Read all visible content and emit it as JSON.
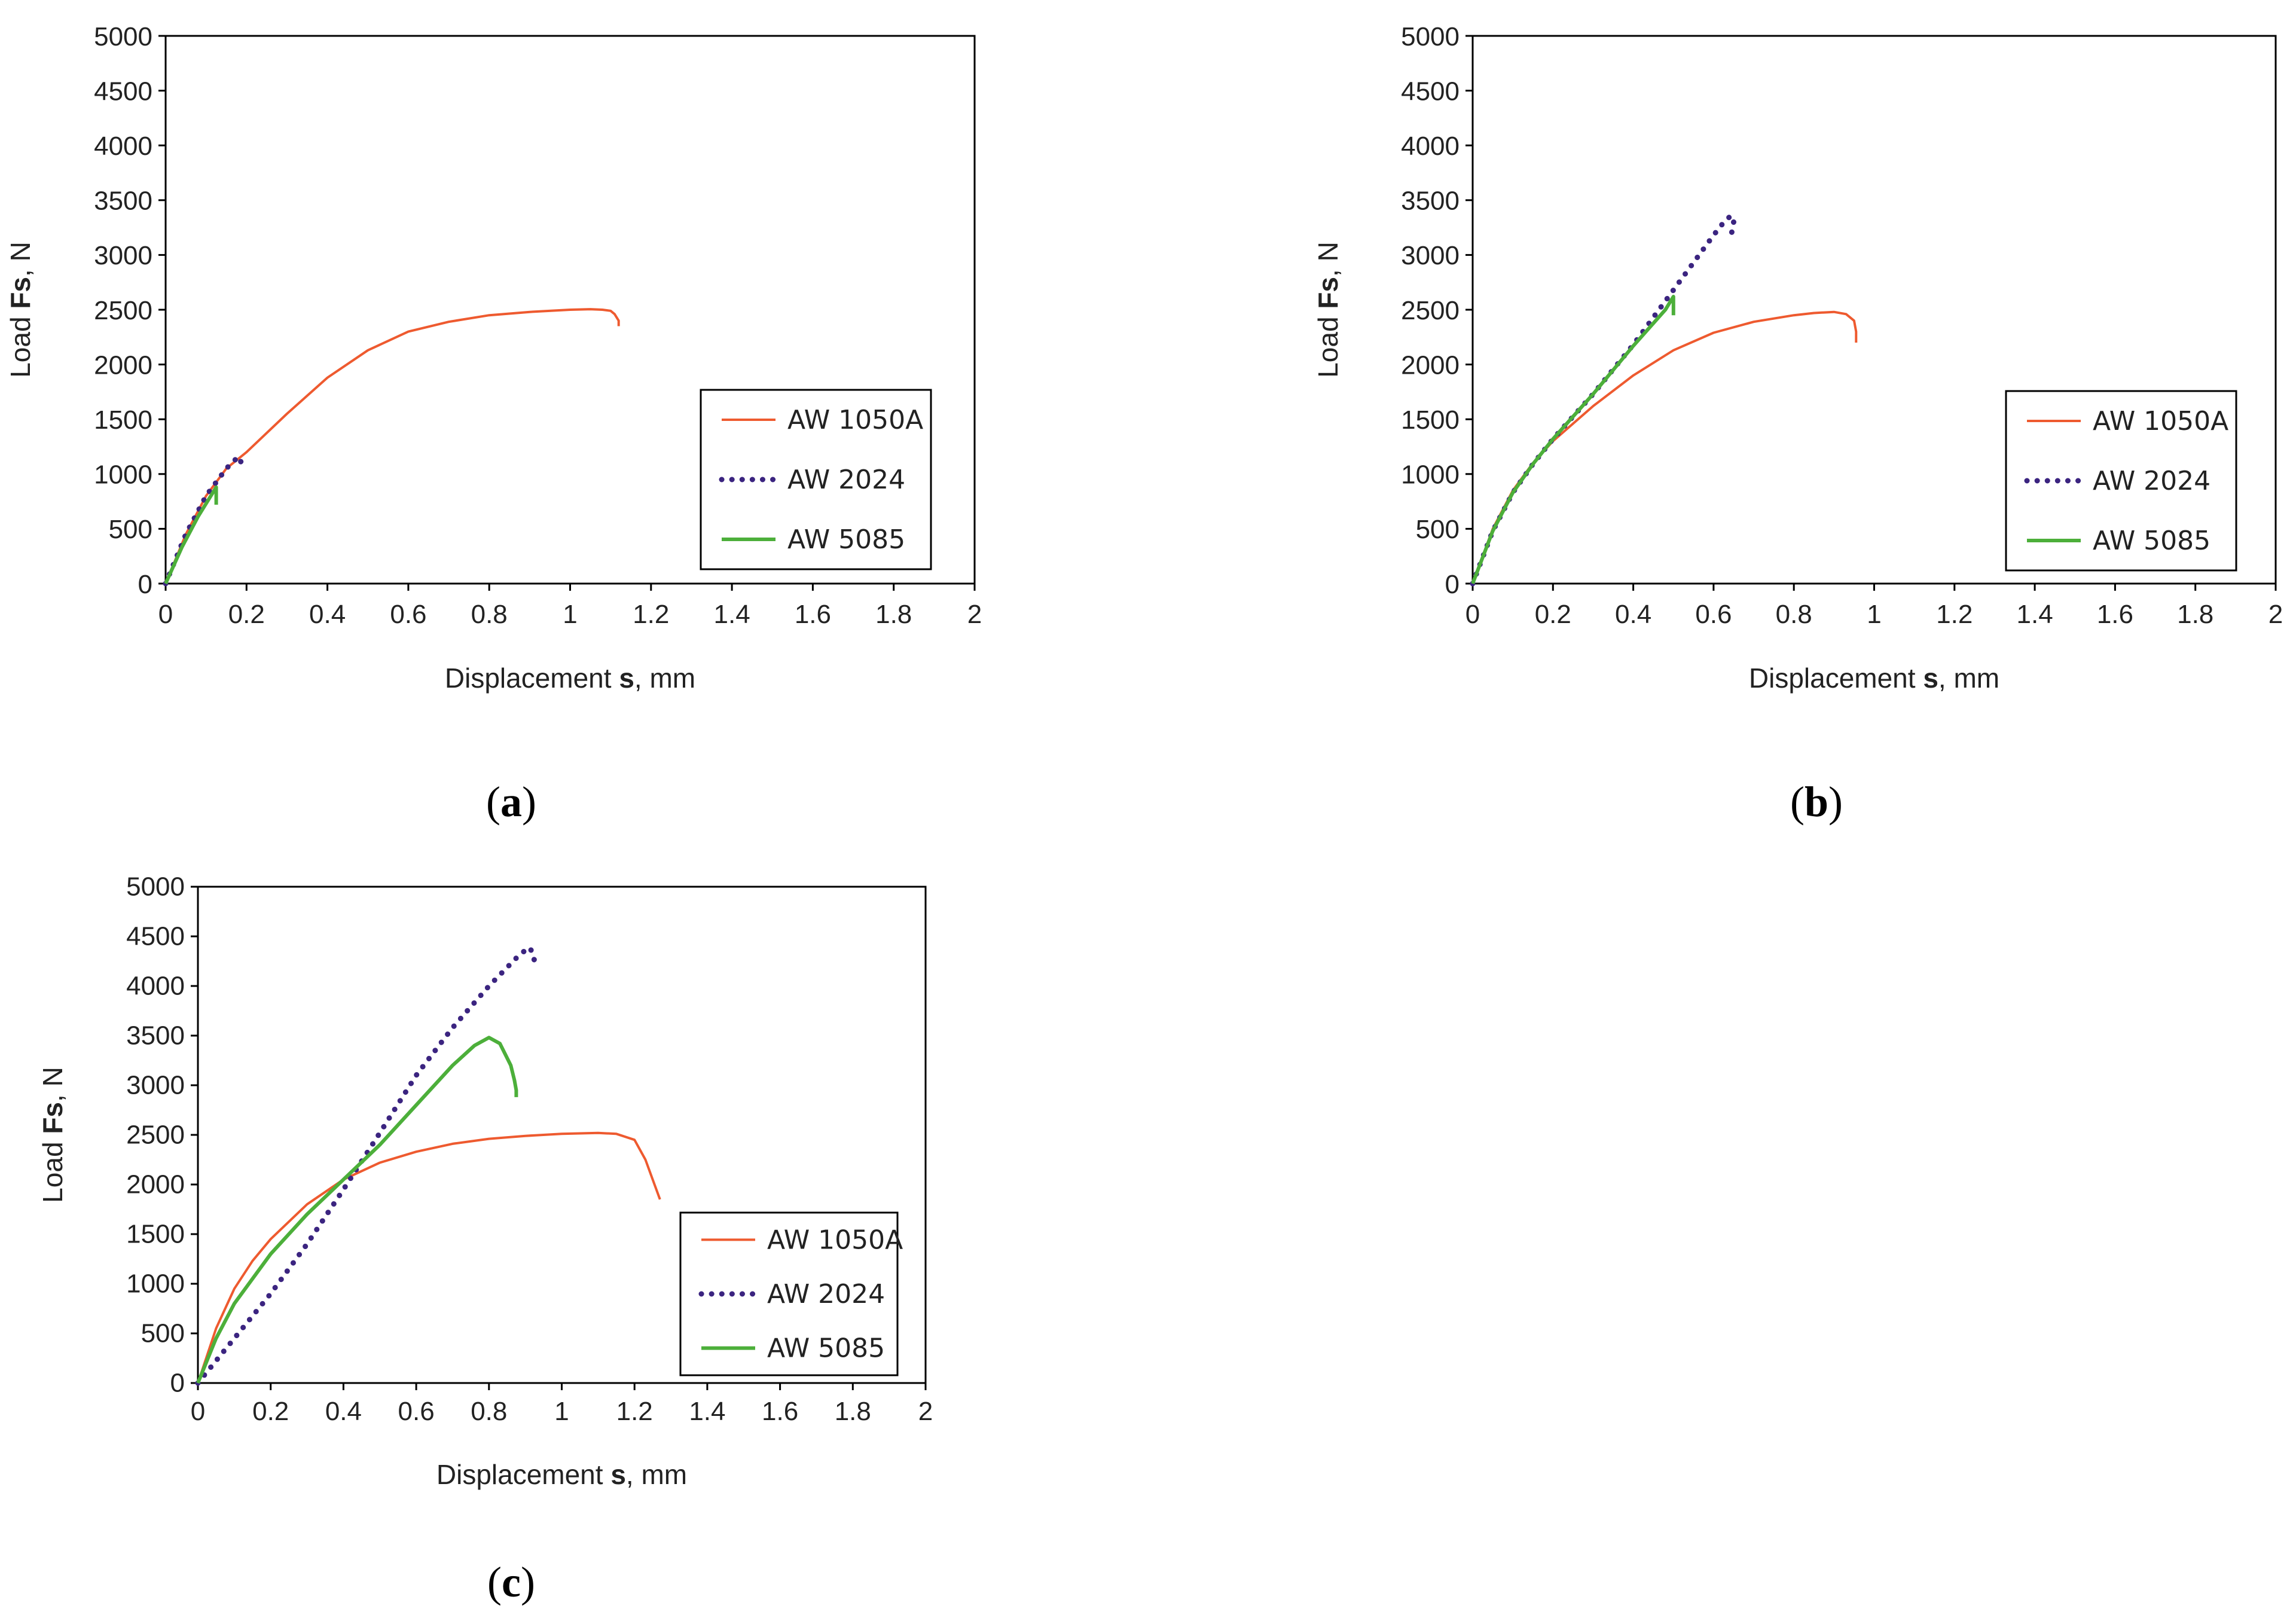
{
  "colors": {
    "AW 1050A": "#ee5a2f",
    "AW 2024": "#3b2480",
    "AW 5085": "#4caf3a",
    "axis": "#000000"
  },
  "chart_data": [
    {
      "type": "line",
      "panel": "a",
      "panel_label": {
        "open": "(",
        "letter": "a",
        "close": ")"
      },
      "xlabel": {
        "prefix": "Displacement ",
        "bold": "s",
        "suffix": ", mm"
      },
      "ylabel": {
        "prefix": "Load ",
        "bold": "Fs",
        "suffix": ", N"
      },
      "xlim": [
        0,
        2
      ],
      "ylim": [
        0,
        5000
      ],
      "xticks": [
        "0",
        "0.2",
        "0.4",
        "0.6",
        "0.8",
        "1",
        "1.2",
        "1.4",
        "1.6",
        "1.8",
        "2"
      ],
      "yticks": [
        "0",
        "500",
        "1000",
        "1500",
        "2000",
        "2500",
        "3000",
        "3500",
        "4000",
        "4500",
        "5000"
      ],
      "legend_position": "bottom-right",
      "series": [
        {
          "name": "AW 1050A",
          "style": "solid",
          "x": [
            0,
            0.05,
            0.1,
            0.15,
            0.2,
            0.3,
            0.4,
            0.5,
            0.6,
            0.7,
            0.8,
            0.9,
            1.0,
            1.05,
            1.08,
            1.1,
            1.11,
            1.12,
            1.12
          ],
          "y": [
            0,
            450,
            800,
            1050,
            1200,
            1550,
            1880,
            2130,
            2300,
            2390,
            2450,
            2480,
            2500,
            2505,
            2500,
            2490,
            2460,
            2400,
            2350
          ]
        },
        {
          "name": "AW 2024",
          "style": "dotted",
          "x": [
            0,
            0.05,
            0.1,
            0.15,
            0.18,
            0.19
          ],
          "y": [
            0,
            450,
            800,
            1050,
            1160,
            1080
          ]
        },
        {
          "name": "AW 5085",
          "style": "solid",
          "x": [
            0,
            0.04,
            0.08,
            0.12,
            0.125,
            0.125
          ],
          "y": [
            0,
            330,
            610,
            850,
            880,
            720
          ]
        }
      ]
    },
    {
      "type": "line",
      "panel": "b",
      "panel_label": {
        "open": "(",
        "letter": "b",
        "close": ")"
      },
      "xlabel": {
        "prefix": "Displacement ",
        "bold": "s",
        "suffix": ", mm"
      },
      "ylabel": {
        "prefix": "Load ",
        "bold": "Fs",
        "suffix": ", N"
      },
      "xlim": [
        0,
        2
      ],
      "ylim": [
        0,
        5000
      ],
      "xticks": [
        "0",
        "0.2",
        "0.4",
        "0.6",
        "0.8",
        "1",
        "1.2",
        "1.4",
        "1.6",
        "1.8",
        "2"
      ],
      "yticks": [
        "0",
        "500",
        "1000",
        "1500",
        "2000",
        "2500",
        "3000",
        "3500",
        "4000",
        "4500",
        "5000"
      ],
      "legend_position": "bottom-right",
      "series": [
        {
          "name": "AW 1050A",
          "style": "solid",
          "x": [
            0,
            0.05,
            0.1,
            0.15,
            0.2,
            0.3,
            0.4,
            0.5,
            0.6,
            0.7,
            0.8,
            0.85,
            0.9,
            0.93,
            0.95,
            0.955,
            0.955
          ],
          "y": [
            0,
            500,
            850,
            1100,
            1300,
            1620,
            1900,
            2130,
            2290,
            2390,
            2450,
            2470,
            2480,
            2460,
            2400,
            2300,
            2200
          ]
        },
        {
          "name": "AW 2024",
          "style": "dotted",
          "x": [
            0,
            0.05,
            0.1,
            0.15,
            0.2,
            0.3,
            0.4,
            0.5,
            0.6,
            0.63,
            0.645,
            0.65,
            0.645
          ],
          "y": [
            0,
            480,
            830,
            1090,
            1320,
            1730,
            2180,
            2680,
            3180,
            3320,
            3360,
            3300,
            3200
          ]
        },
        {
          "name": "AW 5085",
          "style": "solid",
          "x": [
            0,
            0.05,
            0.1,
            0.15,
            0.2,
            0.3,
            0.4,
            0.48,
            0.5,
            0.5
          ],
          "y": [
            0,
            480,
            830,
            1090,
            1320,
            1730,
            2170,
            2500,
            2620,
            2450
          ]
        }
      ]
    },
    {
      "type": "line",
      "panel": "c",
      "panel_label": {
        "open": "(",
        "letter": "c",
        "close": ")"
      },
      "xlabel": {
        "prefix": "Displacement ",
        "bold": "s",
        "suffix": ", mm"
      },
      "ylabel": {
        "prefix": "Load ",
        "bold": "Fs",
        "suffix": ", N"
      },
      "xlim": [
        0,
        2
      ],
      "ylim": [
        0,
        5000
      ],
      "xticks": [
        "0",
        "0.2",
        "0.4",
        "0.6",
        "0.8",
        "1",
        "1.2",
        "1.4",
        "1.6",
        "1.8",
        "2"
      ],
      "yticks": [
        "0",
        "500",
        "1000",
        "1500",
        "2000",
        "2500",
        "3000",
        "3500",
        "4000",
        "4500",
        "5000"
      ],
      "legend_position": "bottom-right",
      "series": [
        {
          "name": "AW 1050A",
          "style": "solid",
          "x": [
            0,
            0.05,
            0.1,
            0.15,
            0.2,
            0.3,
            0.4,
            0.5,
            0.6,
            0.7,
            0.8,
            0.9,
            1.0,
            1.1,
            1.15,
            1.2,
            1.23,
            1.25,
            1.26,
            1.27
          ],
          "y": [
            0,
            550,
            950,
            1230,
            1450,
            1800,
            2050,
            2220,
            2330,
            2410,
            2460,
            2490,
            2510,
            2520,
            2510,
            2450,
            2250,
            2050,
            1950,
            1850
          ]
        },
        {
          "name": "AW 2024",
          "style": "dotted",
          "x": [
            0,
            0.1,
            0.2,
            0.3,
            0.4,
            0.5,
            0.6,
            0.7,
            0.8,
            0.88,
            0.91,
            0.92,
            0.925
          ],
          "y": [
            0,
            450,
            900,
            1400,
            1950,
            2520,
            3100,
            3580,
            4000,
            4300,
            4390,
            4340,
            4250
          ]
        },
        {
          "name": "AW 5085",
          "style": "solid",
          "x": [
            0,
            0.05,
            0.1,
            0.2,
            0.3,
            0.4,
            0.5,
            0.6,
            0.7,
            0.76,
            0.8,
            0.83,
            0.86,
            0.87,
            0.875,
            0.875
          ],
          "y": [
            0,
            450,
            800,
            1300,
            1700,
            2050,
            2400,
            2800,
            3200,
            3400,
            3480,
            3420,
            3200,
            3050,
            2950,
            2880
          ]
        }
      ]
    }
  ]
}
